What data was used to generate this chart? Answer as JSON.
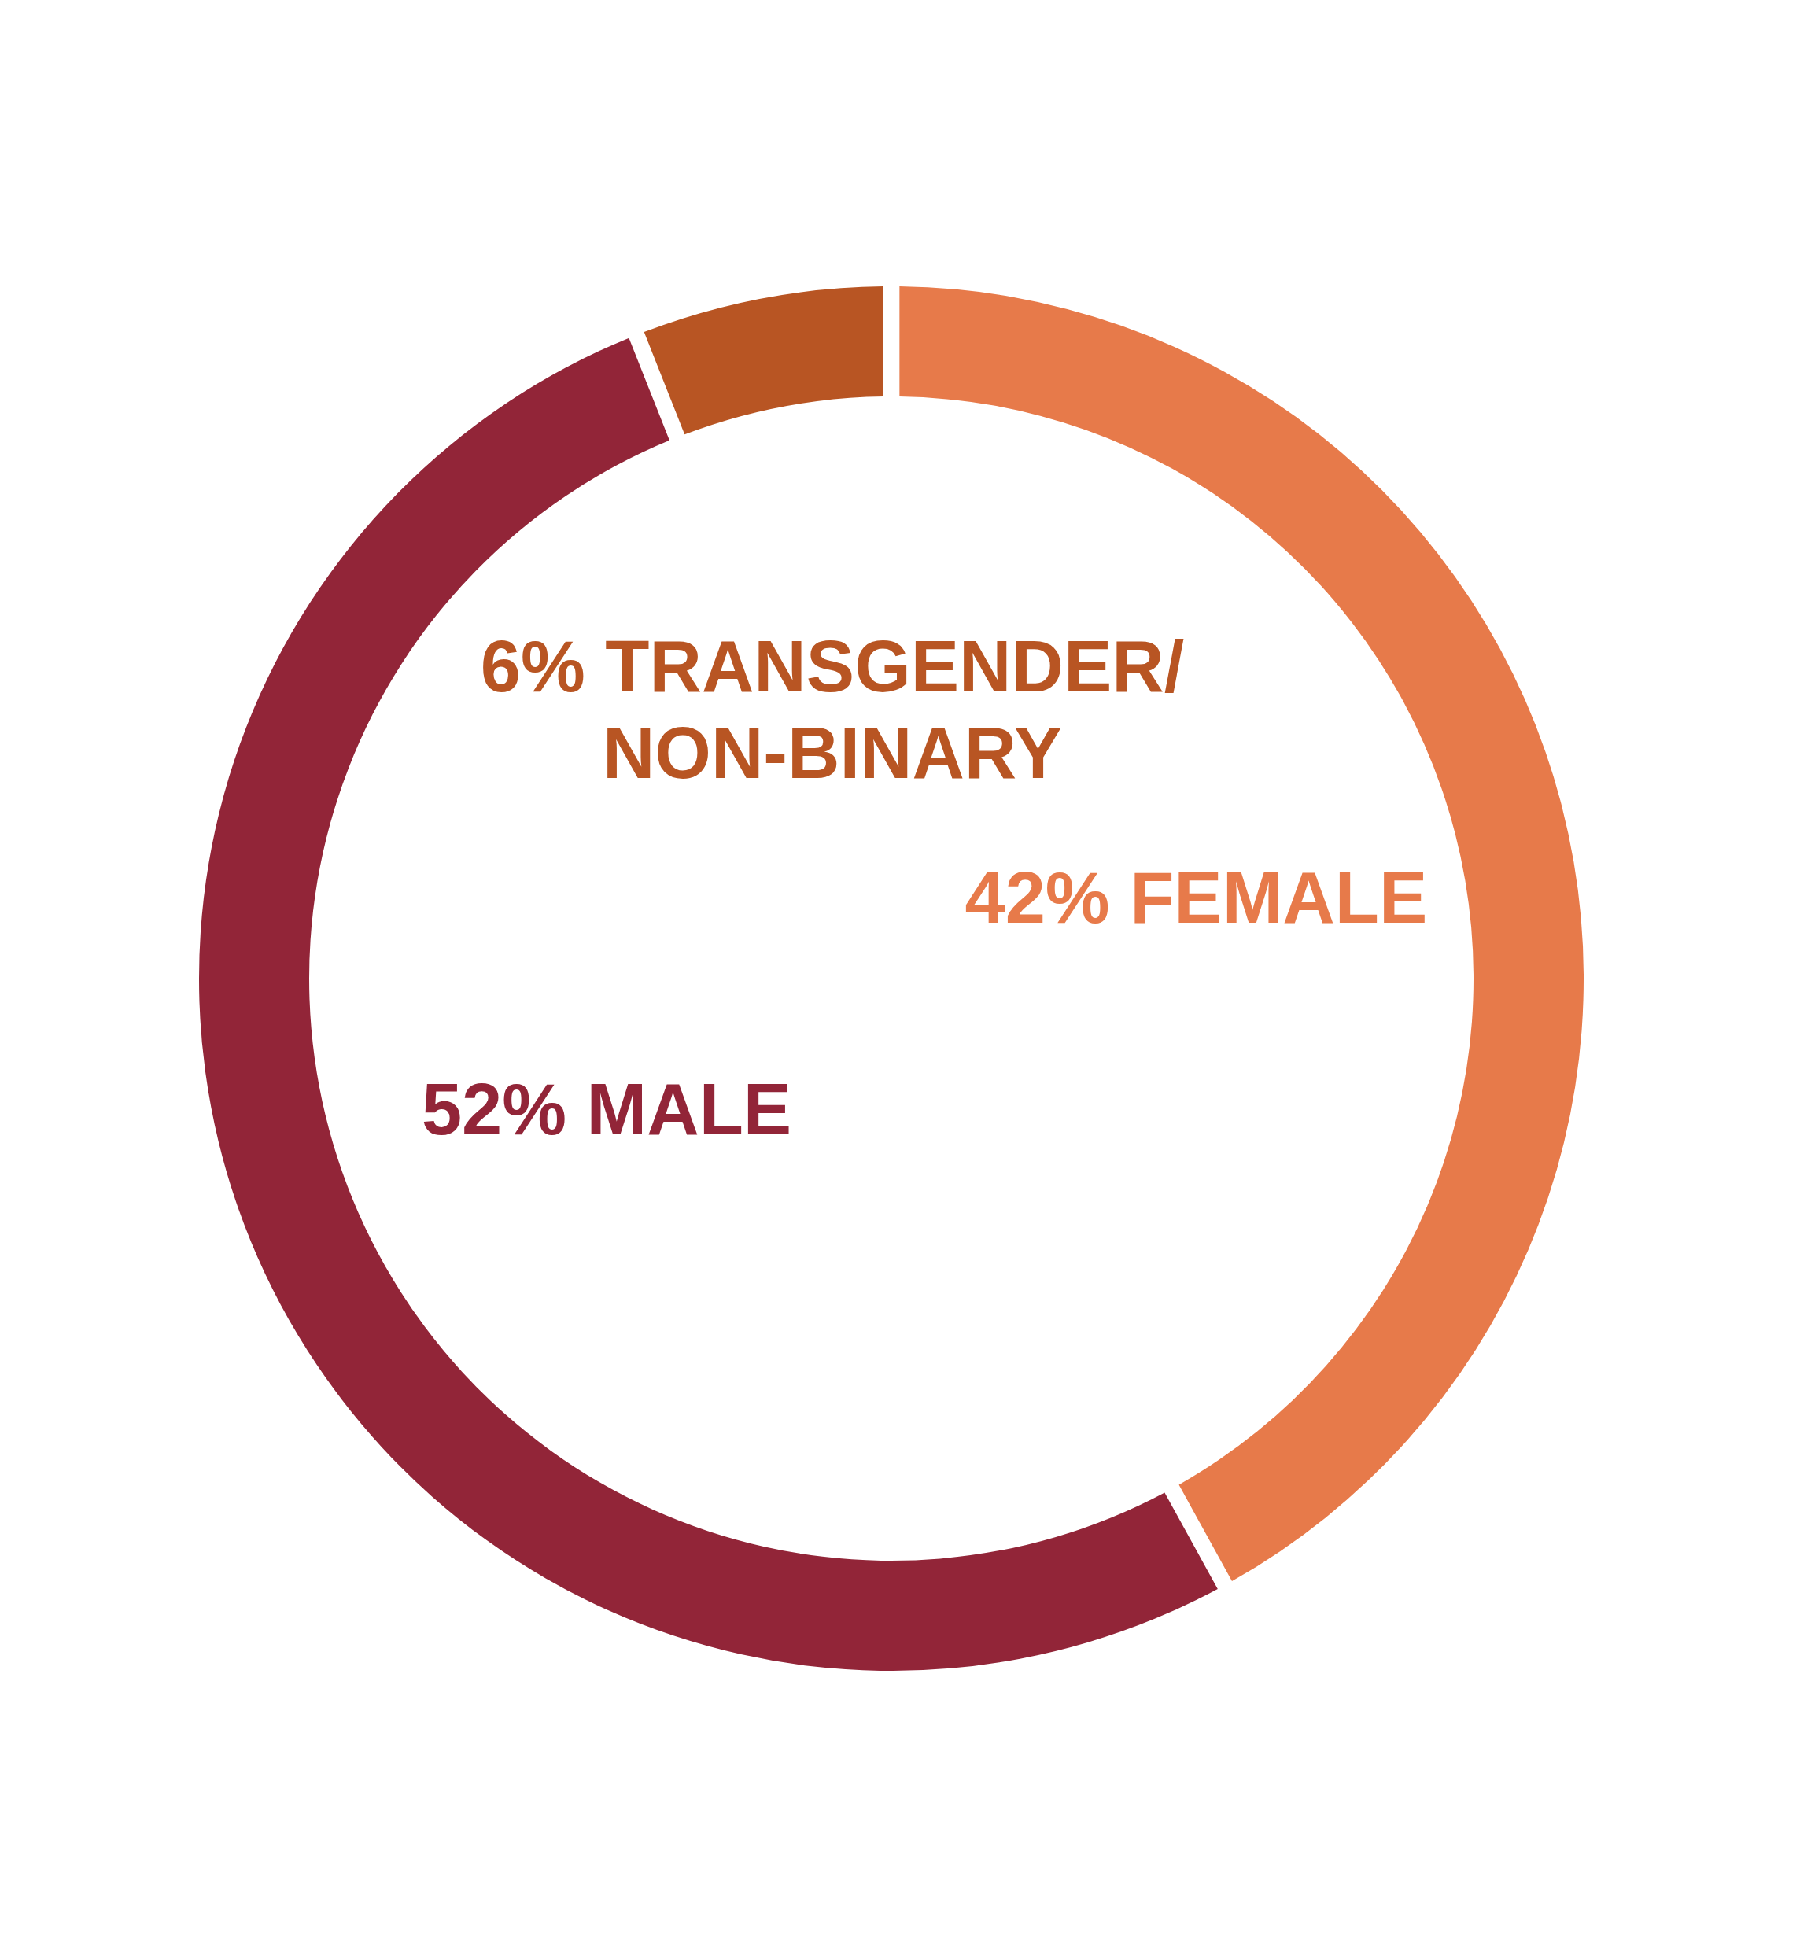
{
  "chart_data": {
    "type": "donut",
    "categories": [
      "FEMALE",
      "MALE",
      "TRANSGENDER/ NON-BINARY"
    ],
    "values": [
      42,
      52,
      6
    ],
    "value_labels": [
      "42%",
      "52%",
      "6%"
    ],
    "colors": [
      "#e77a4a",
      "#922538",
      "#b85523"
    ],
    "legend": false
  }
}
